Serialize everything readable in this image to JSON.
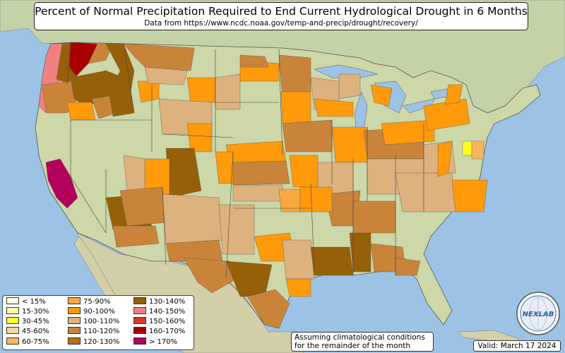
{
  "title": "Percent of Normal Precipitation Required to End Current Hydrological Drought in 6 Months",
  "subtitle": "Data from https://www.ncdc.noaa.gov/temp-and-precip/drought/recovery/",
  "note_line1": "Assuming climatological conditions",
  "note_line2": "for the remainder of the month",
  "valid": "Valid: March 17 2024",
  "logo_text": "NEXLAB",
  "legend": [
    {
      "label": "< 15%",
      "color": "#ffffe0"
    },
    {
      "label": "15-30%",
      "color": "#ffffa8"
    },
    {
      "label": "30-45%",
      "color": "#ffff20"
    },
    {
      "label": "45-60%",
      "color": "#f5d6a0"
    },
    {
      "label": "60-75%",
      "color": "#f9b560"
    },
    {
      "label": "75-90%",
      "color": "#f9a741"
    },
    {
      "label": "90-100%",
      "color": "#ff9a0a"
    },
    {
      "label": "100-110%",
      "color": "#ddb27e"
    },
    {
      "label": "110-120%",
      "color": "#c9843a"
    },
    {
      "label": "120-130%",
      "color": "#b27212"
    },
    {
      "label": "130-140%",
      "color": "#966008"
    },
    {
      "label": "140-150%",
      "color": "#f28080"
    },
    {
      "label": "150-160%",
      "color": "#d83a2a"
    },
    {
      "label": "160-170%",
      "color": "#a80000"
    },
    {
      "label": "> 170%",
      "color": "#b2005d"
    }
  ],
  "colors": {
    "ocean": "#9cc3e6",
    "land": "#cdd7a7",
    "canada": "#c4d2a8",
    "mexico": "#d3cfa8"
  }
}
